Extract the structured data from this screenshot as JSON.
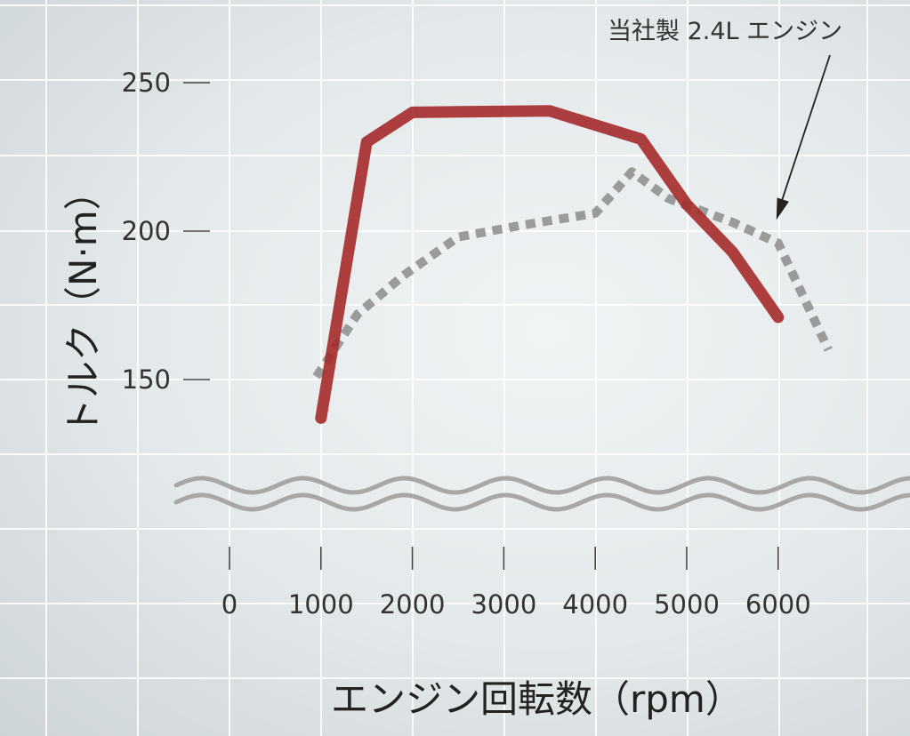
{
  "chart_data": {
    "type": "line",
    "xlabel": "エンジン回転数（rpm）",
    "ylabel": "トルク（N·m）",
    "x_ticks": [
      "0",
      "1000",
      "2000",
      "3000",
      "4000",
      "5000",
      "6000"
    ],
    "y_ticks": [
      "150",
      "200",
      "250"
    ],
    "xlim": [
      0,
      6000
    ],
    "y_break_below": 150,
    "grid": true,
    "series": [
      {
        "color": "#a52a2a",
        "style": "solid",
        "x": [
          1000,
          1500,
          2000,
          3500,
          4500,
          5000,
          5500,
          6000
        ],
        "y": [
          137,
          230,
          240,
          240.5,
          231,
          209,
          193,
          171
        ]
      },
      {
        "name": "当社製 2.4L エンジン",
        "color": "#8c8c8c",
        "style": "dotted",
        "x": [
          950,
          1400,
          1900,
          2500,
          3200,
          4000,
          4400,
          4800,
          5500,
          6000,
          6550
        ],
        "y": [
          151,
          172,
          185,
          198,
          202,
          206,
          220,
          211,
          203,
          196,
          160
        ]
      }
    ],
    "annotations": [
      {
        "text": "当社製 2.4L エンジン",
        "points_to": {
          "x": 6000,
          "y": 199
        }
      }
    ]
  }
}
